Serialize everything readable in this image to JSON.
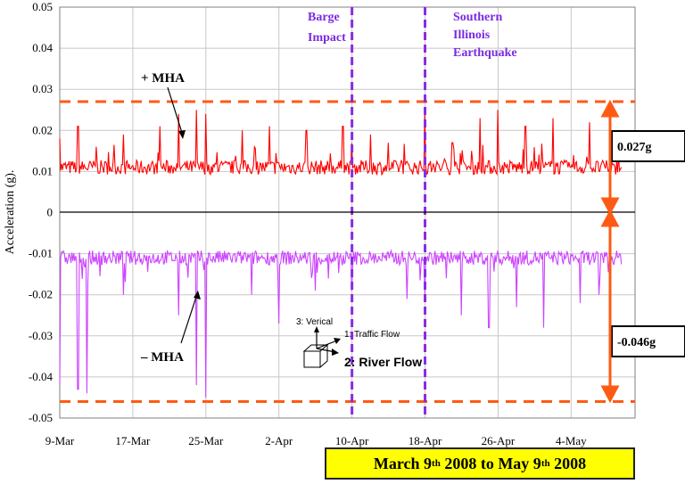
{
  "chart_data": {
    "type": "line",
    "ylabel": "Acceleration (g).",
    "ylim": [
      -0.05,
      0.05
    ],
    "yticks": [
      "0.05",
      "0.04",
      "0.03",
      "0.02",
      "0.01",
      "0",
      "-0.01",
      "-0.02",
      "-0.03",
      "-0.04",
      "-0.05"
    ],
    "ytick_values": [
      0.05,
      0.04,
      0.03,
      0.02,
      0.01,
      0,
      -0.01,
      -0.02,
      -0.03,
      -0.04,
      -0.05
    ],
    "xtick_labels": [
      "9-Mar",
      "17-Mar",
      "25-Mar",
      "2-Apr",
      "10-Apr",
      "18-Apr",
      "26-Apr",
      "4-May"
    ],
    "xtick_values": [
      "2008-03-09",
      "2008-03-17",
      "2008-03-25",
      "2008-04-02",
      "2008-04-10",
      "2008-04-18",
      "2008-04-26",
      "2008-05-04"
    ],
    "xlim": [
      "2008-03-09",
      "2008-05-11"
    ],
    "series": [
      {
        "name": "+ MHA",
        "color": "#ff0000",
        "baseline": 0.011,
        "spike_dates": [
          "2008-03-09",
          "2008-03-11",
          "2008-03-13",
          "2008-03-16",
          "2008-03-20",
          "2008-03-22",
          "2008-03-24",
          "2008-03-25",
          "2008-03-29",
          "2008-04-01",
          "2008-04-05",
          "2008-04-09",
          "2008-04-12",
          "2008-04-14",
          "2008-04-18",
          "2008-04-21",
          "2008-04-24",
          "2008-04-26",
          "2008-04-29",
          "2008-05-02",
          "2008-05-06"
        ],
        "spike_values": [
          0.018,
          0.021,
          0.016,
          0.019,
          0.021,
          0.024,
          0.025,
          0.024,
          0.02,
          0.021,
          0.02,
          0.021,
          0.019,
          0.017,
          0.025,
          0.017,
          0.023,
          0.025,
          0.021,
          0.023,
          0.022
        ]
      },
      {
        "name": "– MHA",
        "color": "#cc44ff",
        "baseline": -0.011,
        "spike_dates": [
          "2008-03-09",
          "2008-03-11",
          "2008-03-12",
          "2008-03-16",
          "2008-03-22",
          "2008-03-24",
          "2008-03-25",
          "2008-03-30",
          "2008-04-02",
          "2008-04-06",
          "2008-04-10",
          "2008-04-16",
          "2008-04-18",
          "2008-04-22",
          "2008-04-25",
          "2008-04-28",
          "2008-05-01",
          "2008-05-05",
          "2008-05-07"
        ],
        "spike_values": [
          -0.042,
          -0.043,
          -0.044,
          -0.02,
          -0.025,
          -0.042,
          -0.045,
          -0.02,
          -0.027,
          -0.019,
          -0.019,
          -0.021,
          -0.02,
          -0.025,
          -0.028,
          -0.023,
          -0.028,
          -0.022,
          -0.02
        ]
      }
    ],
    "hlines": [
      {
        "value": 0.027,
        "color": "#ff5a14",
        "style": "dashed"
      },
      {
        "value": -0.046,
        "color": "#ff5a14",
        "style": "dashed"
      }
    ],
    "vlines": [
      {
        "date": "2008-04-10",
        "label": "Barge Impact",
        "color": "#8a2be2"
      },
      {
        "date": "2008-04-18",
        "label": "Southern Illinois Earthquake",
        "color": "#8a2be2"
      }
    ],
    "grid": true,
    "annotations": {
      "pos_mha": "+ MHA",
      "neg_mha": "– MHA",
      "barge_line1": "Barge",
      "barge_line2": "Impact",
      "quake_line1": "Southern",
      "quake_line2": "Illinois",
      "quake_line3": "Earthquake",
      "pos_box": "0.027g",
      "neg_box": "-0.046g",
      "axis_vertical": "3: Verical",
      "axis_traffic": "1: Traffic Flow",
      "axis_river": "2: River Flow"
    },
    "footer": {
      "part1": "March 9",
      "sup1": "th",
      "part2": " 2008 to May 9",
      "sup2": "th",
      "part3": " 2008"
    }
  }
}
